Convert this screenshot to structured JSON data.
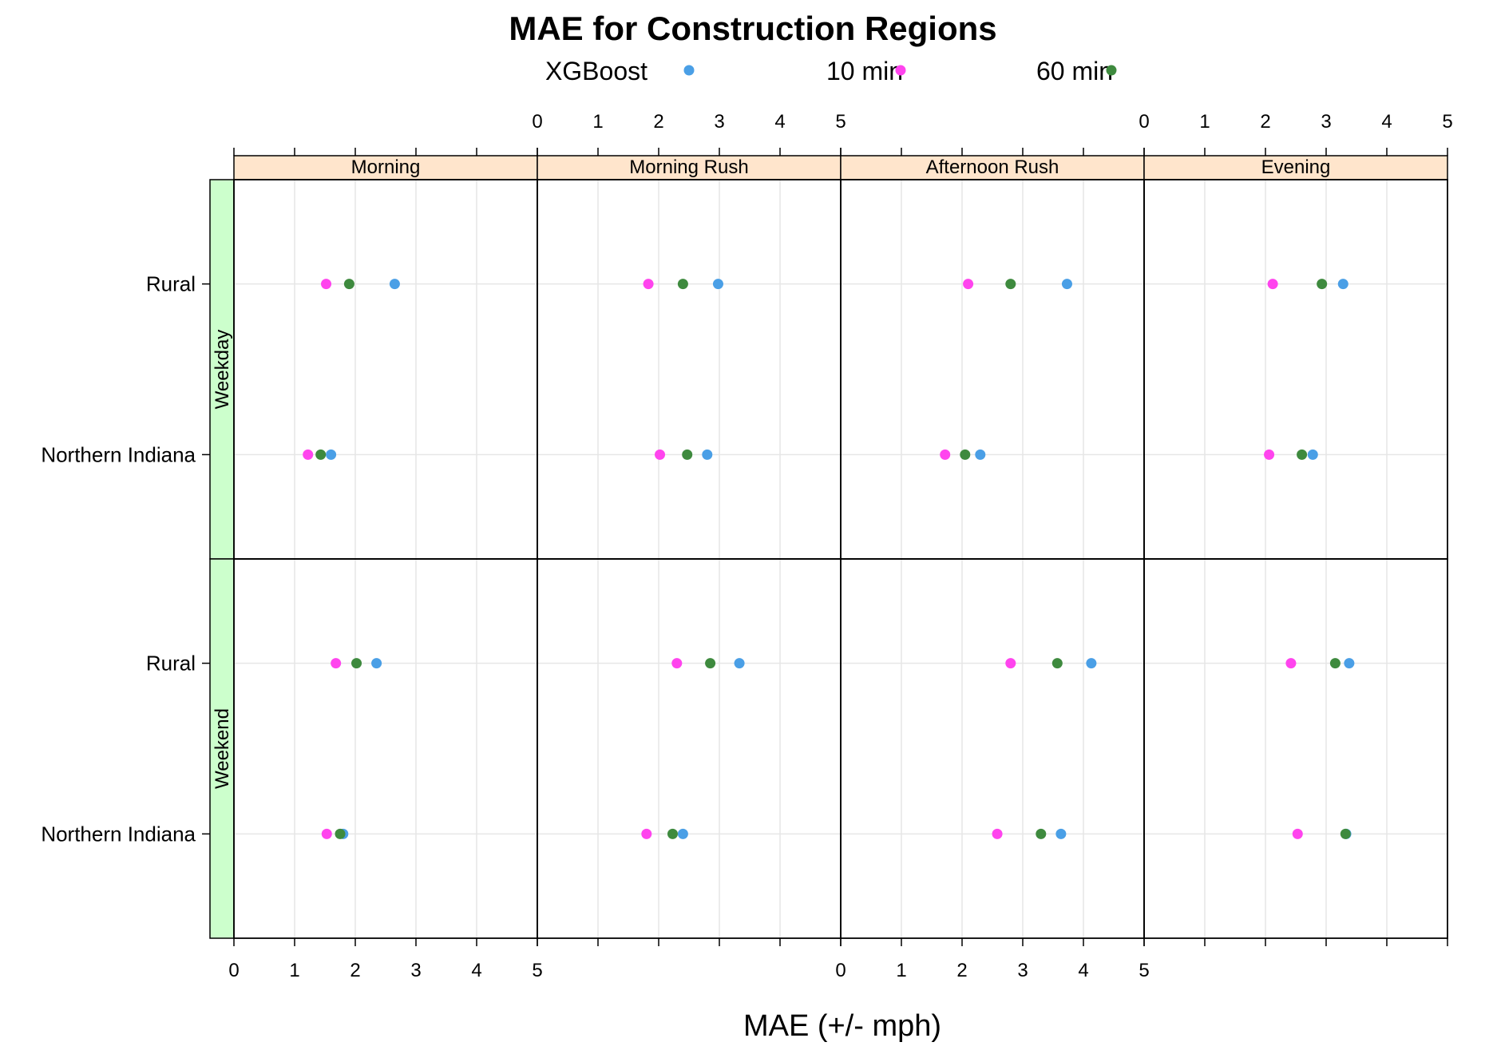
{
  "chart_data": {
    "type": "scatter",
    "title": "MAE for Construction Regions",
    "xlabel": "MAE (+/- mph)",
    "ylabel": "",
    "xlim": [
      0,
      5
    ],
    "x_ticks": [
      "0",
      "1",
      "2",
      "3",
      "4",
      "5"
    ],
    "column_panels": [
      "Morning",
      "Morning Rush",
      "Afternoon Rush",
      "Evening"
    ],
    "row_panels": [
      "Weekday",
      "Weekend"
    ],
    "categories": [
      "Rural",
      "Northern Indiana"
    ],
    "grid": true,
    "legend_position": "top",
    "series": [
      {
        "name": "XGBoost",
        "color": "#4a9fe6",
        "values": {
          "Weekday": {
            "Morning": {
              "Rural": 2.65,
              "Northern Indiana": 1.6
            },
            "Morning Rush": {
              "Rural": 2.98,
              "Northern Indiana": 2.8
            },
            "Afternoon Rush": {
              "Rural": 3.73,
              "Northern Indiana": 2.3
            },
            "Evening": {
              "Rural": 3.28,
              "Northern Indiana": 2.78
            }
          },
          "Weekend": {
            "Morning": {
              "Rural": 2.35,
              "Northern Indiana": 1.8
            },
            "Morning Rush": {
              "Rural": 3.33,
              "Northern Indiana": 2.4
            },
            "Afternoon Rush": {
              "Rural": 4.13,
              "Northern Indiana": 3.63
            },
            "Evening": {
              "Rural": 3.38,
              "Northern Indiana": 3.33
            }
          }
        }
      },
      {
        "name": "10 min",
        "color": "#ff44ee",
        "values": {
          "Weekday": {
            "Morning": {
              "Rural": 1.52,
              "Northern Indiana": 1.22
            },
            "Morning Rush": {
              "Rural": 1.83,
              "Northern Indiana": 2.02
            },
            "Afternoon Rush": {
              "Rural": 2.1,
              "Northern Indiana": 1.72
            },
            "Evening": {
              "Rural": 2.12,
              "Northern Indiana": 2.06
            }
          },
          "Weekend": {
            "Morning": {
              "Rural": 1.68,
              "Northern Indiana": 1.53
            },
            "Morning Rush": {
              "Rural": 2.3,
              "Northern Indiana": 1.8
            },
            "Afternoon Rush": {
              "Rural": 2.8,
              "Northern Indiana": 2.58
            },
            "Evening": {
              "Rural": 2.42,
              "Northern Indiana": 2.53
            }
          }
        }
      },
      {
        "name": "60 min",
        "color": "#3e8a3e",
        "values": {
          "Weekday": {
            "Morning": {
              "Rural": 1.9,
              "Northern Indiana": 1.43
            },
            "Morning Rush": {
              "Rural": 2.4,
              "Northern Indiana": 2.47
            },
            "Afternoon Rush": {
              "Rural": 2.8,
              "Northern Indiana": 2.05
            },
            "Evening": {
              "Rural": 2.93,
              "Northern Indiana": 2.6
            }
          },
          "Weekend": {
            "Morning": {
              "Rural": 2.02,
              "Northern Indiana": 1.75
            },
            "Morning Rush": {
              "Rural": 2.85,
              "Northern Indiana": 2.23
            },
            "Afternoon Rush": {
              "Rural": 3.57,
              "Northern Indiana": 3.3
            },
            "Evening": {
              "Rural": 3.15,
              "Northern Indiana": 3.32
            }
          }
        }
      }
    ]
  },
  "colors": {
    "strip_column": "#ffe5cc",
    "strip_row": "#ccffcc",
    "grid": "#e6e6e6"
  }
}
